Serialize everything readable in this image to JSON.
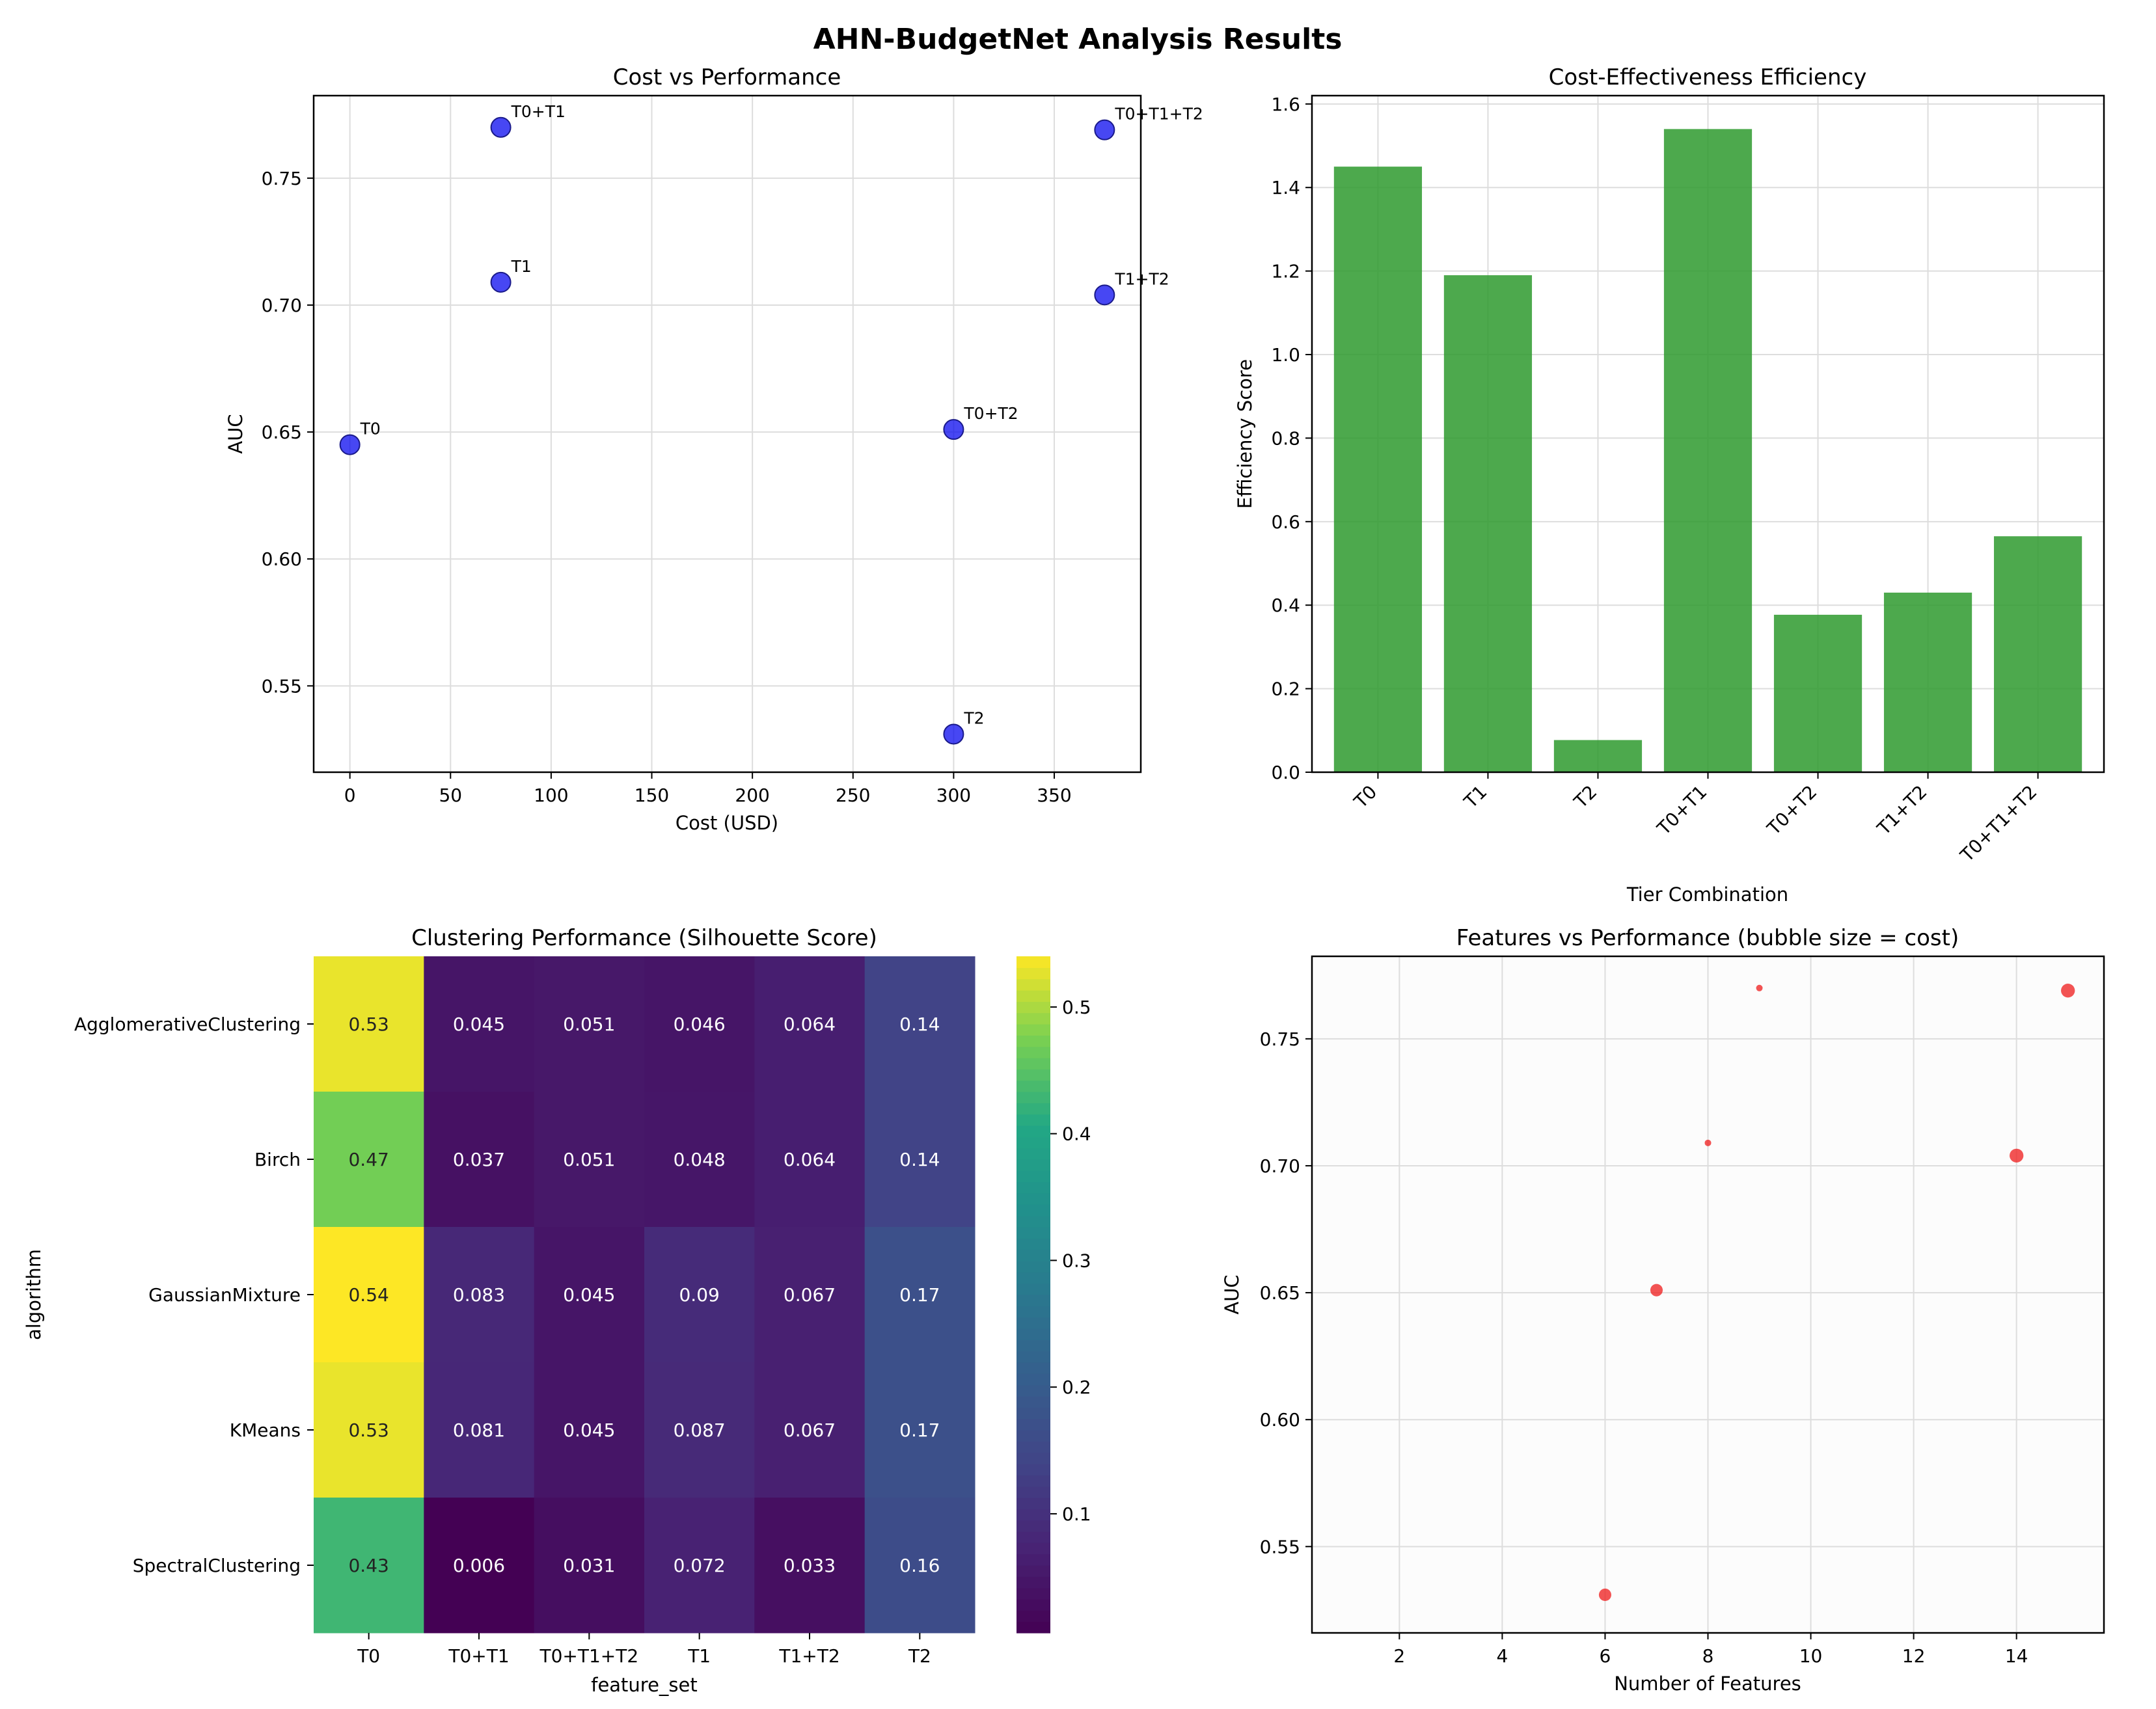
{
  "figure_title": "AHN-BudgetNet Analysis Results",
  "colors": {
    "scatter_point": "#0000ee",
    "bar": "#2e9a2e",
    "bubble": "#ee2222",
    "grid": "#dddddd",
    "axis": "#000000"
  },
  "chart_data": [
    {
      "type": "scatter",
      "title": "Cost vs Performance",
      "xlabel": "Cost (USD)",
      "ylabel": "AUC",
      "xlim": [
        -18,
        393
      ],
      "ylim": [
        0.516,
        0.7825
      ],
      "xticks": [
        0,
        50,
        100,
        150,
        200,
        250,
        300,
        350
      ],
      "yticks": [
        0.55,
        0.6,
        0.65,
        0.7,
        0.75
      ],
      "ytick_labels": [
        "0.55",
        "0.60",
        "0.65",
        "0.70",
        "0.75"
      ],
      "points": [
        {
          "label": "T0",
          "x": 0,
          "y": 0.645
        },
        {
          "label": "T1",
          "x": 75,
          "y": 0.709
        },
        {
          "label": "T2",
          "x": 300,
          "y": 0.531
        },
        {
          "label": "T0+T1",
          "x": 75,
          "y": 0.77
        },
        {
          "label": "T0+T2",
          "x": 300,
          "y": 0.651
        },
        {
          "label": "T1+T2",
          "x": 375,
          "y": 0.704
        },
        {
          "label": "T0+T1+T2",
          "x": 375,
          "y": 0.769
        }
      ]
    },
    {
      "type": "bar",
      "title": "Cost-Effectiveness Efficiency",
      "xlabel": "Tier Combination",
      "ylabel": "Efficiency Score",
      "ylim": [
        0,
        1.62
      ],
      "yticks": [
        0.0,
        0.2,
        0.4,
        0.6,
        0.8,
        1.0,
        1.2,
        1.4,
        1.6
      ],
      "ytick_labels": [
        "0.0",
        "0.2",
        "0.4",
        "0.6",
        "0.8",
        "1.0",
        "1.2",
        "1.4",
        "1.6"
      ],
      "categories": [
        "T0",
        "T1",
        "T2",
        "T0+T1",
        "T0+T2",
        "T1+T2",
        "T0+T1+T2"
      ],
      "values": [
        1.45,
        1.19,
        0.077,
        1.54,
        0.377,
        0.43,
        0.565
      ]
    },
    {
      "type": "heatmap",
      "title": "Clustering Performance (Silhouette Score)",
      "xlabel": "feature_set",
      "ylabel": "algorithm",
      "columns": [
        "T0",
        "T0+T1",
        "T0+T1+T2",
        "T1",
        "T1+T2",
        "T2"
      ],
      "rows": [
        "AgglomerativeClustering",
        "Birch",
        "GaussianMixture",
        "KMeans",
        "SpectralClustering"
      ],
      "values": [
        [
          0.53,
          0.045,
          0.051,
          0.046,
          0.064,
          0.14
        ],
        [
          0.47,
          0.037,
          0.051,
          0.048,
          0.064,
          0.14
        ],
        [
          0.54,
          0.083,
          0.045,
          0.09,
          0.067,
          0.17
        ],
        [
          0.53,
          0.081,
          0.045,
          0.087,
          0.067,
          0.17
        ],
        [
          0.43,
          0.006,
          0.031,
          0.072,
          0.033,
          0.16
        ]
      ],
      "cell_labels": [
        [
          "0.53",
          "0.045",
          "0.051",
          "0.046",
          "0.064",
          "0.14"
        ],
        [
          "0.47",
          "0.037",
          "0.051",
          "0.048",
          "0.064",
          "0.14"
        ],
        [
          "0.54",
          "0.083",
          "0.045",
          "0.09",
          "0.067",
          "0.17"
        ],
        [
          "0.53",
          "0.081",
          "0.045",
          "0.087",
          "0.067",
          "0.17"
        ],
        [
          "0.43",
          "0.006",
          "0.031",
          "0.072",
          "0.033",
          "0.16"
        ]
      ],
      "vmin": 0.006,
      "vmax": 0.54,
      "colorbar_ticks": [
        0.1,
        0.2,
        0.3,
        0.4,
        0.5
      ],
      "colorbar_tick_labels": [
        "0.1",
        "0.2",
        "0.3",
        "0.4",
        "0.5"
      ]
    },
    {
      "type": "scatter",
      "title": "Features vs Performance (bubble size = cost)",
      "xlabel": "Number of Features",
      "ylabel": "AUC",
      "xlim": [
        0.3,
        15.7
      ],
      "ylim": [
        0.516,
        0.7825
      ],
      "xticks": [
        2,
        4,
        6,
        8,
        10,
        12,
        14
      ],
      "yticks": [
        0.55,
        0.6,
        0.65,
        0.7,
        0.75
      ],
      "ytick_labels": [
        "0.55",
        "0.60",
        "0.65",
        "0.70",
        "0.75"
      ],
      "points": [
        {
          "features": 6,
          "auc": 0.531,
          "cost": 300
        },
        {
          "features": 7,
          "auc": 0.651,
          "cost": 300
        },
        {
          "features": 8,
          "auc": 0.709,
          "cost": 75
        },
        {
          "features": 9,
          "auc": 0.77,
          "cost": 75
        },
        {
          "features": 14,
          "auc": 0.704,
          "cost": 375
        },
        {
          "features": 15,
          "auc": 0.769,
          "cost": 375
        }
      ]
    }
  ]
}
